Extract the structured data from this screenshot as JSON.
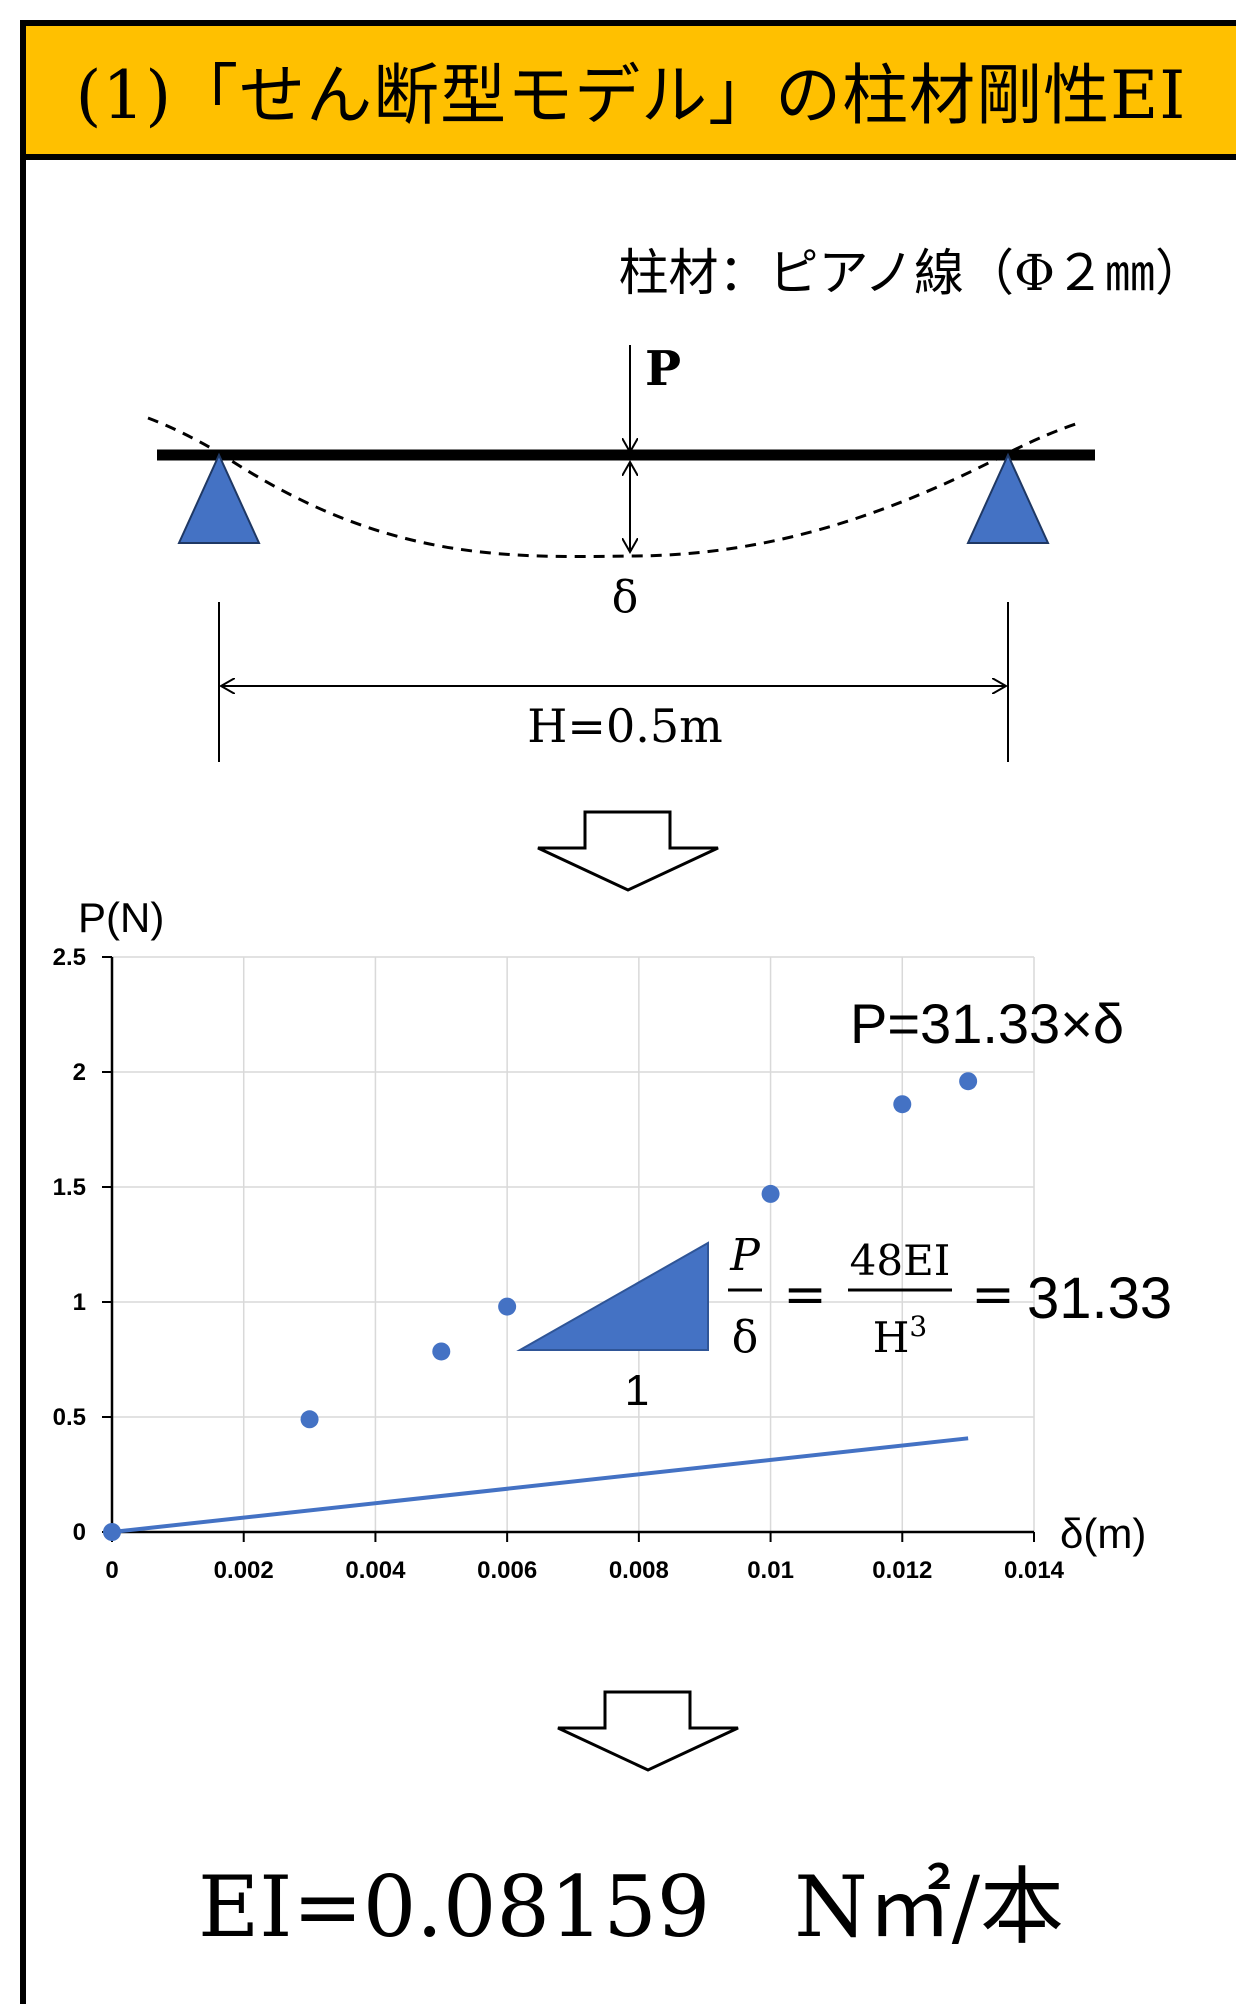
{
  "header": {
    "title": "(1)「せん断型モデル」の柱材剛性EI"
  },
  "beam_diagram": {
    "material_label": "柱材：ピアノ線（Φ２㎜）",
    "load_label": "P",
    "deflection_label": "δ",
    "span_label": "H=0.5m"
  },
  "chart_data": {
    "type": "scatter",
    "title": "",
    "xlabel": "δ(m)",
    "ylabel": "P(N)",
    "xlim": [
      0,
      0.014
    ],
    "ylim": [
      0,
      2.5
    ],
    "x_ticks": [
      "0",
      "0.002",
      "0.004",
      "0.006",
      "0.008",
      "0.01",
      "0.012",
      "0.014"
    ],
    "y_ticks": [
      "0",
      "0.5",
      "1",
      "1.5",
      "2",
      "2.5"
    ],
    "grid": true,
    "series": [
      {
        "x": [
          0,
          0.003,
          0.005,
          0.006,
          0.01,
          0.012,
          0.013
        ],
        "y": [
          0,
          0.49,
          0.785,
          0.98,
          1.47,
          1.86,
          1.96
        ],
        "color": "#4472C4"
      }
    ],
    "trendline": {
      "slope": 31.33,
      "x_range": [
        0,
        0.013
      ],
      "color": "#4472C4"
    },
    "annotations": {
      "equation": "P=31.33×δ",
      "slope_triangle_label": "1",
      "frac1_num": "P",
      "frac1_den": "δ",
      "equals1": "=",
      "frac2_num": "48EI",
      "frac2_den": "H",
      "frac2_den_exp": "3",
      "equals2": "=",
      "slope_value": "31.33"
    }
  },
  "result": {
    "text": "EI=0.08159　N㎡/本"
  },
  "colors": {
    "header_bg": "#FFC000",
    "accent": "#4472C4"
  }
}
